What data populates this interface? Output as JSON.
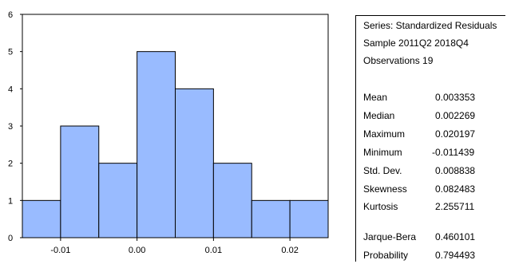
{
  "chart_data": {
    "type": "histogram",
    "title": "",
    "xlabel": "",
    "ylabel": "",
    "bin_edges": [
      -0.015,
      -0.01,
      -0.005,
      0.0,
      0.005,
      0.01,
      0.015,
      0.02,
      0.025
    ],
    "values": [
      1,
      3,
      2,
      5,
      4,
      2,
      1,
      1
    ],
    "x_ticks": [
      -0.01,
      0.0,
      0.01,
      0.02
    ],
    "x_tick_labels": [
      "-0.01",
      "0.00",
      "0.01",
      "0.02"
    ],
    "y_ticks": [
      0,
      1,
      2,
      3,
      4,
      5,
      6
    ],
    "y_tick_labels": [
      "0",
      "1",
      "2",
      "3",
      "4",
      "5",
      "6"
    ],
    "xlim": [
      -0.015,
      0.025
    ],
    "ylim": [
      0,
      6
    ],
    "bar_color": "#99bbff",
    "grid": false
  },
  "stats": {
    "series_line": "Series: Standardized Residuals",
    "sample_line": "Sample 2011Q2 2018Q4",
    "obs_line": "Observations 19",
    "rows": [
      {
        "label": "Mean",
        "value": "0.003353"
      },
      {
        "label": "Median",
        "value": "0.002269"
      },
      {
        "label": "Maximum",
        "value": "0.020197"
      },
      {
        "label": "Minimum",
        "value": "-0.011439"
      },
      {
        "label": "Std. Dev.",
        "value": "0.008838"
      },
      {
        "label": "Skewness",
        "value": "0.082483"
      },
      {
        "label": "Kurtosis",
        "value": "2.255711"
      }
    ],
    "jb_rows": [
      {
        "label": "Jarque-Bera",
        "value": "0.460101"
      },
      {
        "label": "Probability",
        "value": "0.794493"
      }
    ]
  }
}
